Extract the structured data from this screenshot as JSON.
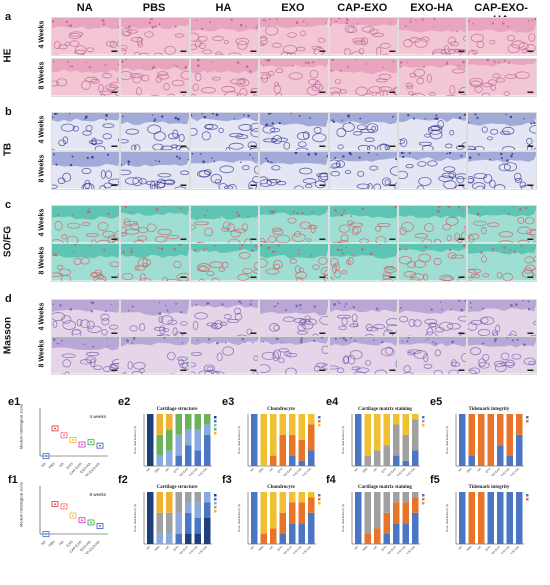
{
  "figure": {
    "panel_letters": [
      "a",
      "b",
      "c",
      "d",
      "e1",
      "e2",
      "e3",
      "e4",
      "e5",
      "f1",
      "f2",
      "f3",
      "f4",
      "f5"
    ],
    "column_headers": [
      "NA",
      "PBS",
      "HA",
      "EXO",
      "CAP-EXO",
      "EXO-HA",
      "CAP-EXO-HA"
    ],
    "stain_rows": [
      {
        "letter": "a",
        "name": "HE"
      },
      {
        "letter": "b",
        "name": "TB"
      },
      {
        "letter": "c",
        "name": "SO/FG"
      },
      {
        "letter": "d",
        "name": "Masson"
      }
    ],
    "timepoints": [
      "4 Weeks",
      "8 Weeks"
    ],
    "colors": {
      "he_bg": "#f3c6d4",
      "he_tissue": "#e8a0bd",
      "he_dark": "#b85c8e",
      "tb_bg": "#e4e6f3",
      "tb_tissue": "#9aa3d6",
      "tb_dark": "#2a2f8a",
      "so_bg": "#9fded2",
      "so_tissue": "#57c2b0",
      "so_red": "#d9535f",
      "ma_bg": "#e6d4e8",
      "ma_tissue": "#b4a3d4",
      "ma_dark": "#6c5aa8"
    }
  },
  "e1": {
    "label": "4 weeks",
    "ylabel": "Modern histological score"
  },
  "f1": {
    "label": "8 weeks",
    "ylabel": "Modern histological score"
  },
  "score_titles": [
    "Cartilage structure",
    "Chondrocyte",
    "Cartilage matrix staining",
    "Tidemark integrity"
  ],
  "yaxis_label": "Score distribution (%)",
  "chart_data": [
    {
      "type": "box",
      "id": "e1",
      "categories": [
        "NA",
        "PBS",
        "HA",
        "EXO",
        "CAP-EXO",
        "EXO-HA",
        "CAP-EXO-HA"
      ],
      "values": [
        0,
        12,
        9,
        7,
        5,
        6,
        4.5
      ],
      "colors": [
        "#3a6fd8",
        "#e03030",
        "#ff6060",
        "#ffb020",
        "#cc33cc",
        "#33aa33",
        "#3355cc"
      ],
      "ylim": [
        0,
        20
      ]
    },
    {
      "type": "bar",
      "id": "e2",
      "title": "Cartilage structure",
      "categories": [
        "NA",
        "PBS",
        "HA",
        "EXO",
        "CAP-EXO",
        "EXO-HA",
        "CAP-EXO-HA"
      ],
      "series": [
        {
          "values": [
            100,
            0,
            0,
            0,
            0,
            0,
            0
          ],
          "color": "#1f3f7a"
        },
        {
          "values": [
            0,
            0,
            0,
            20,
            40,
            30,
            60
          ],
          "color": "#4a76c4"
        },
        {
          "values": [
            0,
            20,
            30,
            40,
            30,
            40,
            20
          ],
          "color": "#8aa9de"
        },
        {
          "values": [
            0,
            40,
            40,
            40,
            30,
            30,
            20
          ],
          "color": "#6bb35a"
        },
        {
          "values": [
            0,
            40,
            30,
            0,
            0,
            0,
            0
          ],
          "color": "#f0b030"
        }
      ]
    },
    {
      "type": "bar",
      "id": "e3",
      "title": "Chondrocyte",
      "categories": [
        "NA",
        "PBS",
        "HA",
        "EXO",
        "CAP-EXO",
        "EXO-HA",
        "CAP-EXO-HA"
      ],
      "series": [
        {
          "values": [
            100,
            0,
            0,
            0,
            20,
            10,
            30
          ],
          "color": "#4a76c4"
        },
        {
          "values": [
            0,
            0,
            20,
            60,
            40,
            40,
            50
          ],
          "color": "#e8742a"
        },
        {
          "values": [
            0,
            100,
            80,
            40,
            40,
            50,
            20
          ],
          "color": "#f0c030"
        }
      ]
    },
    {
      "type": "bar",
      "id": "e4",
      "title": "Cartilage matrix staining",
      "categories": [
        "NA",
        "PBS",
        "HA",
        "EXO",
        "CAP-EXO",
        "EXO-HA",
        "CAP-EXO-HA"
      ],
      "series": [
        {
          "values": [
            100,
            0,
            0,
            0,
            20,
            10,
            30
          ],
          "color": "#4a76c4"
        },
        {
          "values": [
            0,
            20,
            30,
            40,
            60,
            50,
            60
          ],
          "color": "#a0a0a0"
        },
        {
          "values": [
            0,
            80,
            70,
            60,
            20,
            40,
            10
          ],
          "color": "#f0c030"
        }
      ]
    },
    {
      "type": "bar",
      "id": "e5",
      "title": "Tidemark integrity",
      "categories": [
        "NA",
        "PBS",
        "HA",
        "EXO",
        "CAP-EXO",
        "EXO-HA",
        "CAP-EXO-HA"
      ],
      "series": [
        {
          "values": [
            100,
            20,
            0,
            0,
            40,
            20,
            60
          ],
          "color": "#4a76c4"
        },
        {
          "values": [
            0,
            80,
            100,
            100,
            60,
            80,
            40
          ],
          "color": "#e8742a"
        }
      ]
    },
    {
      "type": "box",
      "id": "f1",
      "categories": [
        "NA",
        "PBS",
        "HA",
        "EXO",
        "CAP-EXO",
        "EXO-HA",
        "CAP-EXO-HA"
      ],
      "values": [
        0,
        13,
        12,
        8,
        6,
        5,
        3.5
      ],
      "colors": [
        "#3a6fd8",
        "#e03030",
        "#ff6060",
        "#ffb020",
        "#cc33cc",
        "#33aa33",
        "#3355cc"
      ],
      "ylim": [
        0,
        20
      ]
    },
    {
      "type": "bar",
      "id": "f2",
      "title": "Cartilage structure",
      "categories": [
        "NA",
        "PBS",
        "HA",
        "EXO",
        "CAP-EXO",
        "EXO-HA",
        "CAP-EXO-HA"
      ],
      "series": [
        {
          "values": [
            100,
            0,
            0,
            0,
            20,
            20,
            50
          ],
          "color": "#1f3f7a"
        },
        {
          "values": [
            0,
            0,
            0,
            20,
            40,
            30,
            30
          ],
          "color": "#4a76c4"
        },
        {
          "values": [
            0,
            20,
            20,
            40,
            20,
            30,
            20
          ],
          "color": "#8aa9de"
        },
        {
          "values": [
            0,
            40,
            40,
            40,
            20,
            20,
            0
          ],
          "color": "#a0a0a0"
        },
        {
          "values": [
            0,
            40,
            40,
            0,
            0,
            0,
            0
          ],
          "color": "#f0b030"
        }
      ]
    },
    {
      "type": "bar",
      "id": "f3",
      "title": "Chondrocyte",
      "categories": [
        "NA",
        "PBS",
        "HA",
        "EXO",
        "CAP-EXO",
        "EXO-HA",
        "CAP-EXO-HA"
      ],
      "series": [
        {
          "values": [
            100,
            0,
            0,
            20,
            40,
            40,
            60
          ],
          "color": "#4a76c4"
        },
        {
          "values": [
            0,
            20,
            30,
            40,
            40,
            40,
            30
          ],
          "color": "#e8742a"
        },
        {
          "values": [
            0,
            80,
            70,
            40,
            20,
            20,
            10
          ],
          "color": "#f0c030"
        }
      ]
    },
    {
      "type": "bar",
      "id": "f4",
      "title": "Cartilage matrix staining",
      "categories": [
        "NA",
        "PBS",
        "HA",
        "EXO",
        "CAP-EXO",
        "EXO-HA",
        "CAP-EXO-HA"
      ],
      "series": [
        {
          "values": [
            100,
            0,
            0,
            20,
            40,
            40,
            60
          ],
          "color": "#4a76c4"
        },
        {
          "values": [
            0,
            20,
            30,
            40,
            40,
            40,
            30
          ],
          "color": "#e8742a"
        },
        {
          "values": [
            0,
            80,
            70,
            40,
            20,
            20,
            10
          ],
          "color": "#a0a0a0"
        }
      ]
    },
    {
      "type": "bar",
      "id": "f5",
      "title": "Tidemark integrity",
      "categories": [
        "NA",
        "PBS",
        "HA",
        "EXO",
        "CAP-EXO",
        "EXO-HA",
        "CAP-EXO-HA"
      ],
      "series": [
        {
          "values": [
            100,
            0,
            0,
            100,
            100,
            100,
            100
          ],
          "color": "#4a76c4"
        },
        {
          "values": [
            0,
            100,
            100,
            0,
            0,
            0,
            0
          ],
          "color": "#e8742a"
        }
      ]
    }
  ]
}
